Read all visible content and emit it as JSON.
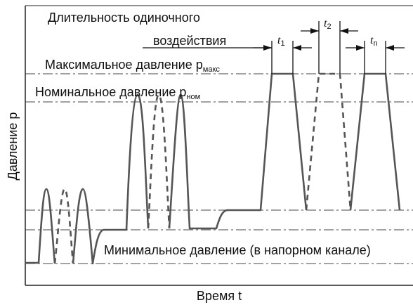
{
  "ylabel": "Давление p",
  "xlabel": "Время t",
  "pulse_duration_label_line1": "Длительность одиночного",
  "pulse_duration_label_line2": "воздействия",
  "max_pressure_label": "Максимальное давление p",
  "max_pressure_subscript": "макс",
  "nominal_pressure_label": "Номинальное давление p",
  "nominal_pressure_subscript": "ном",
  "min_pressure_label": "Минимальное давление (в напорном канале)",
  "interval_labels": [
    {
      "base": "t",
      "sub": "1"
    },
    {
      "base": "t",
      "sub": "2"
    },
    {
      "base": "t",
      "sub": "n"
    }
  ],
  "colors": {
    "curve": "#555555",
    "frame": "#222222",
    "level_line": "#444444"
  }
}
